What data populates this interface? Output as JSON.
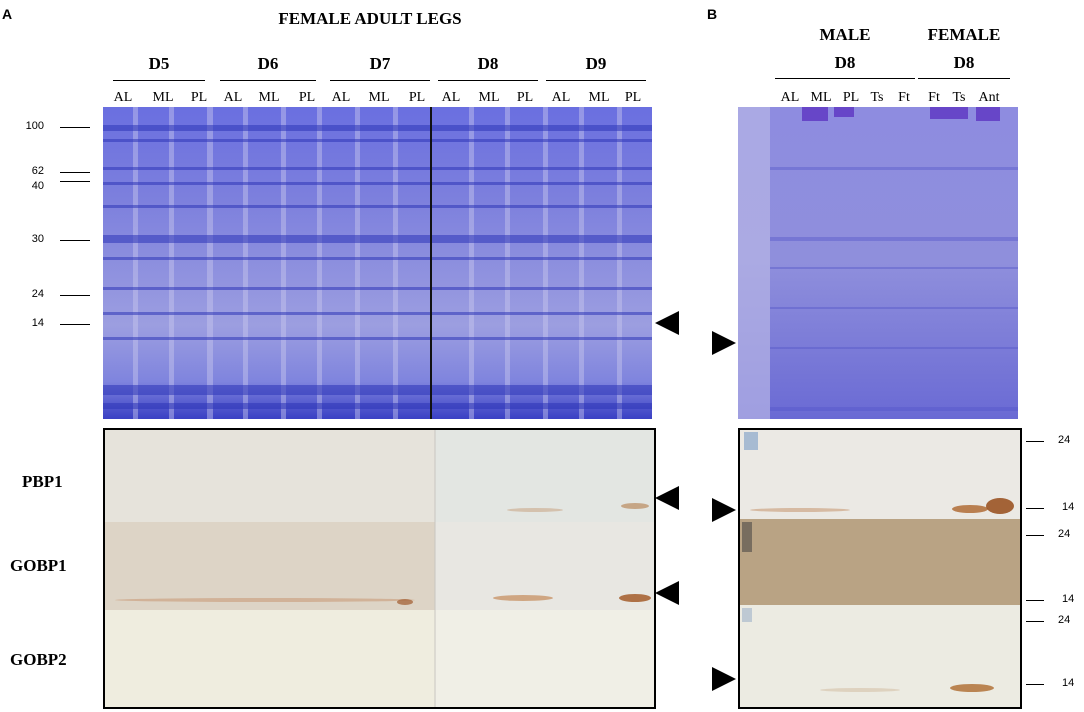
{
  "panel_a": {
    "letter": "A",
    "title": "FEMALE ADULT LEGS",
    "days": [
      "D5",
      "D6",
      "D7",
      "D8",
      "D9"
    ],
    "lanes": [
      "AL",
      "ML",
      "PL",
      "AL",
      "ML",
      "PL",
      "AL",
      "ML",
      "PL",
      "AL",
      "ML",
      "PL",
      "AL",
      "ML",
      "PL"
    ],
    "mw_markers": [
      "100",
      "62",
      "40",
      "30",
      "24",
      "14"
    ],
    "blot_labels": [
      "PBP1",
      "GOBP1",
      "GOBP2"
    ],
    "colors": {
      "gel": "#4a4fd0",
      "blot_a": "#e8e4da",
      "blot_b": "#d9d2c2"
    }
  },
  "panel_b": {
    "letter": "B",
    "groups": [
      {
        "sex": "MALE",
        "day": "D8"
      },
      {
        "sex": "FEMALE",
        "day": "D8"
      }
    ],
    "lanes": [
      "AL",
      "ML",
      "PL",
      "Ts",
      "Ft",
      "Ft",
      "Ts",
      "Ant"
    ],
    "blot_mw": [
      "24",
      "14",
      "24",
      "14",
      "24",
      "14"
    ],
    "colors": {
      "gel": "#7a78d8",
      "blot_mid": "#b8a182"
    }
  }
}
